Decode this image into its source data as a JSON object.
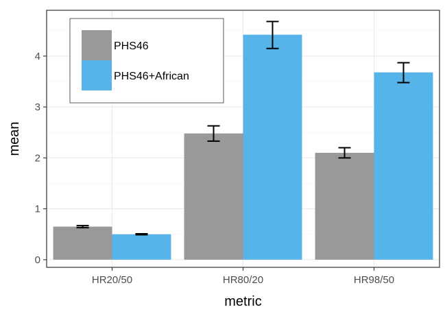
{
  "chart_data": {
    "type": "bar",
    "xlabel": "metric",
    "ylabel": "mean",
    "categories": [
      "HR20/50",
      "HR80/20",
      "HR98/50"
    ],
    "series": [
      {
        "name": "PHS46",
        "values": [
          0.65,
          2.48,
          2.1
        ],
        "err_low": [
          0.63,
          2.33,
          2.0
        ],
        "err_high": [
          0.67,
          2.63,
          2.2
        ],
        "color": "#999999"
      },
      {
        "name": "PHS46+African",
        "values": [
          0.5,
          4.42,
          3.68
        ],
        "err_low": [
          0.49,
          4.15,
          3.48
        ],
        "err_high": [
          0.51,
          4.68,
          3.87
        ],
        "color": "#56b4e9"
      }
    ],
    "ylim": [
      -0.15,
      4.9
    ],
    "yticks": [
      0,
      1,
      2,
      3,
      4
    ],
    "grid": true,
    "legend_position": "top-left",
    "error_bars": true
  }
}
